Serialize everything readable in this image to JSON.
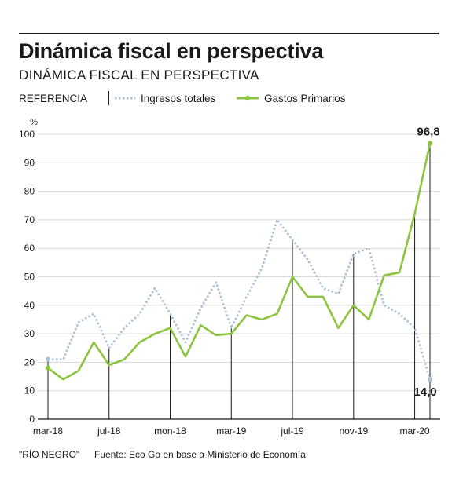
{
  "title": "Dinámica fiscal en perspectiva",
  "subtitle": "DINÁMICA FISCAL EN PERSPECTIVA",
  "legend": {
    "label": "REFERENCIA",
    "items": [
      {
        "name": "Ingresos totales",
        "color": "#a9c1d3",
        "style": "dotted"
      },
      {
        "name": "Gastos Primarios",
        "color": "#8cc43f",
        "style": "solid"
      }
    ]
  },
  "chart_data": {
    "type": "line",
    "ylabel": "%",
    "ylim": [
      0,
      100
    ],
    "yticks": [
      0,
      10,
      20,
      30,
      40,
      50,
      60,
      70,
      80,
      90,
      100
    ],
    "x": [
      "mar-18",
      "abr-18",
      "may-18",
      "jun-18",
      "jul-18",
      "ago-18",
      "sep-18",
      "oct-18",
      "nov-18",
      "dic-18",
      "ene-19",
      "feb-19",
      "mar-19",
      "abr-19",
      "may-19",
      "jun-19",
      "jul-19",
      "ago-19",
      "sep-19",
      "oct-19",
      "nov-19",
      "dic-19",
      "ene-20",
      "feb-20",
      "mar-20",
      "abr-20"
    ],
    "xtick_labels": [
      "mar-18",
      "jul-18",
      "mon-18",
      "mar-19",
      "jul-19",
      "nov-19",
      "mar-20"
    ],
    "xtick_index": [
      0,
      4,
      8,
      12,
      16,
      20,
      24
    ],
    "drop_lines_index": [
      0,
      4,
      8,
      12,
      16,
      20,
      24,
      25
    ],
    "series": [
      {
        "name": "Ingresos totales",
        "color": "#a9c1d3",
        "values": [
          21,
          21,
          34,
          37,
          25,
          32,
          37,
          46,
          37,
          27,
          39,
          48,
          32,
          43,
          53,
          70,
          63,
          56,
          46,
          44,
          58,
          60,
          40,
          37,
          32,
          14
        ]
      },
      {
        "name": "Gastos Primarios",
        "color": "#8cc43f",
        "values": [
          18,
          14,
          17,
          27,
          19,
          21,
          27,
          30,
          32,
          22,
          33,
          29.5,
          30,
          36.5,
          35,
          37,
          50,
          43,
          43,
          32,
          40,
          35,
          50.5,
          51.5,
          72,
          96.8
        ]
      }
    ],
    "annotations": [
      "96,8",
      "14,0"
    ]
  },
  "footer": {
    "source_credit": "\"RÍO NEGRO\"",
    "source": "Fuente: Eco Go en base a Ministerio de Economía"
  }
}
